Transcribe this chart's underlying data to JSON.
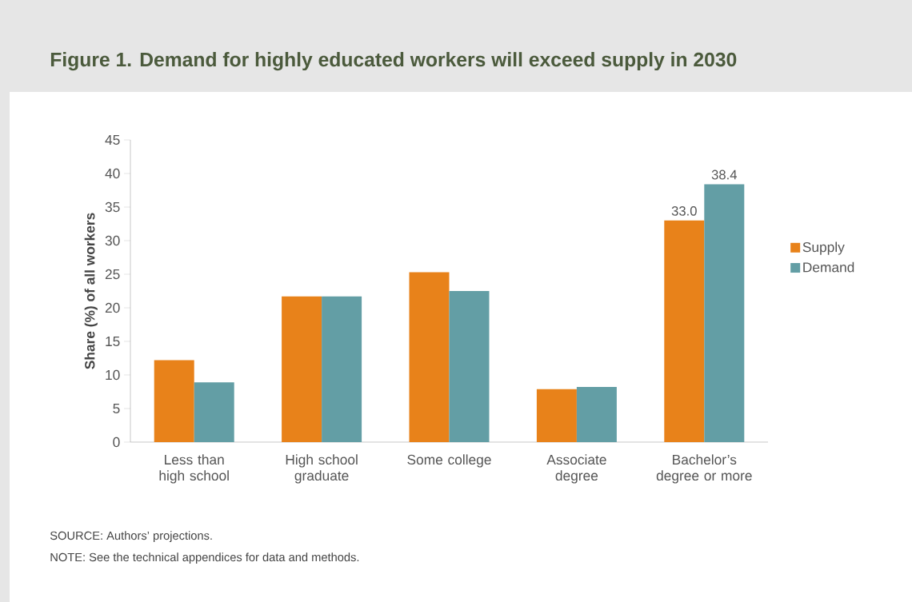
{
  "chart_data": {
    "type": "bar",
    "title": "Figure 1. Demand for highly educated workers will exceed supply in 2030",
    "ylabel": "Share (%) of all workers",
    "categories": [
      "Less than high school",
      "High school graduate",
      "Some college",
      "Associate degree",
      "Bachelor’s degree or more"
    ],
    "series": [
      {
        "name": "Supply",
        "color": "#e8821a",
        "values": [
          12.2,
          21.7,
          25.3,
          7.9,
          33.0
        ],
        "value_labels": [
          null,
          null,
          null,
          null,
          "33.0"
        ]
      },
      {
        "name": "Demand",
        "color": "#639ea5",
        "values": [
          8.9,
          21.7,
          22.5,
          8.2,
          38.4
        ],
        "value_labels": [
          null,
          null,
          null,
          null,
          "38.4"
        ]
      }
    ],
    "ylim": [
      0,
      45
    ],
    "yticks": [
      0,
      5,
      10,
      15,
      20,
      25,
      30,
      35,
      40,
      45
    ],
    "legend": "right",
    "grid": false,
    "annotations": [
      "SOURCE: Authors’ projections.",
      "NOTE: See the technical appendices for data and methods."
    ]
  }
}
